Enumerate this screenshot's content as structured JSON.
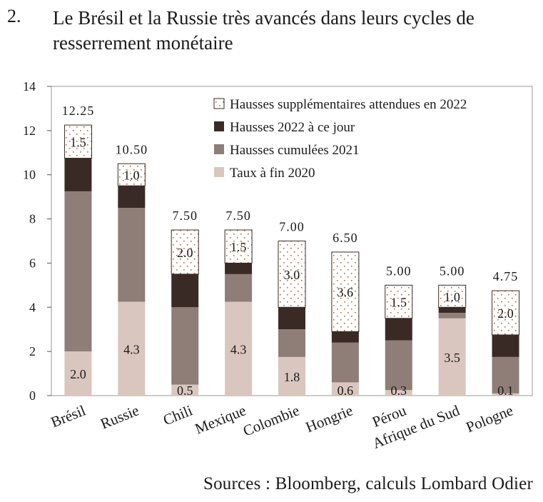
{
  "header": {
    "number": "2.",
    "title": "Le Brésil et la Russie très avancés dans leurs cycles de resserrement monétaire"
  },
  "source": "Sources : Bloomberg, calculs Lombard Odier",
  "colors": {
    "taux_2020": "#d9c6be",
    "hausses_2021": "#8e7e77",
    "hausses_2022": "#3a2a25",
    "attendues_2022_dot": "#b06a3e",
    "axis": "#555555",
    "frame": "#9a9a9a"
  },
  "chart_data": {
    "type": "bar",
    "stacked": true,
    "categories": [
      "Brésil",
      "Russie",
      "Chili",
      "Mexique",
      "Colombie",
      "Hongrie",
      "Pérou",
      "Afrique du Sud",
      "Pologne"
    ],
    "series": [
      {
        "name": "Taux à fin 2020",
        "values": [
          2.0,
          4.25,
          0.5,
          4.25,
          1.75,
          0.6,
          0.25,
          3.5,
          0.1
        ],
        "labels": [
          "2.0",
          "4.3",
          "0.5",
          "4.3",
          "1.8",
          "0.6",
          "0.3",
          "3.5",
          "0.1"
        ]
      },
      {
        "name": "Hausses cumulées 2021",
        "values": [
          7.25,
          4.25,
          3.5,
          1.25,
          1.25,
          1.8,
          2.25,
          0.25,
          1.65
        ]
      },
      {
        "name": "Hausses 2022 à ce jour",
        "values": [
          1.5,
          1.0,
          1.5,
          0.5,
          1.0,
          0.5,
          1.0,
          0.25,
          1.0
        ]
      },
      {
        "name": "Hausses supplémentaires attendues en 2022",
        "values": [
          1.5,
          1.0,
          2.0,
          1.5,
          3.0,
          3.6,
          1.5,
          1.0,
          2.0
        ],
        "labels": [
          "1.5",
          "1.0",
          "2.0",
          "1.5",
          "3.0",
          "3.6",
          "1.5",
          "1.0",
          "2.0"
        ]
      }
    ],
    "totals": [
      "12.25",
      "10.50",
      "7.50",
      "7.50",
      "7.00",
      "6.50",
      "5.00",
      "5.00",
      "4.75"
    ],
    "ylim": [
      0,
      14
    ],
    "yticks": [
      "0",
      "2",
      "4",
      "6",
      "8",
      "10",
      "12",
      "14"
    ],
    "legend_position": "top-right",
    "legend": [
      "Hausses supplémentaires attendues en 2022",
      "Hausses 2022 à ce jour",
      "Hausses cumulées 2021",
      "Taux à fin 2020"
    ],
    "grid": false,
    "xlabel": "",
    "ylabel": ""
  }
}
